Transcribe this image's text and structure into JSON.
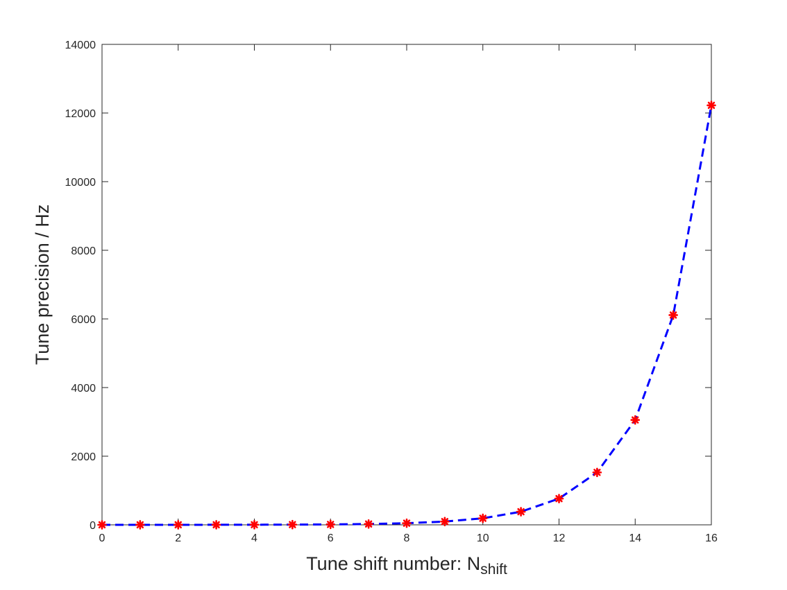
{
  "chart_data": {
    "type": "line",
    "title": "",
    "xlabel": "Tune shift number: N",
    "xlabel_subscript": "shift",
    "ylabel": "Tune precision / Hz",
    "xlim": [
      0,
      16
    ],
    "ylim": [
      0,
      14000
    ],
    "xticks": [
      0,
      2,
      4,
      6,
      8,
      10,
      12,
      14,
      16
    ],
    "yticks": [
      0,
      2000,
      4000,
      6000,
      8000,
      10000,
      12000,
      14000
    ],
    "grid": false,
    "legend": "none",
    "series": [
      {
        "line_style": "dashed",
        "line_color": "#0000ff",
        "marker": "asterisk",
        "marker_color": "#ff0000",
        "x": [
          0,
          1,
          2,
          3,
          4,
          5,
          6,
          7,
          8,
          9,
          10,
          11,
          12,
          13,
          14,
          15,
          16
        ],
        "y": [
          0.19,
          0.37,
          0.75,
          1.5,
          3,
          6,
          12,
          24,
          48,
          95,
          191,
          382,
          764,
          1528,
          3056,
          6112,
          12224
        ]
      }
    ]
  }
}
